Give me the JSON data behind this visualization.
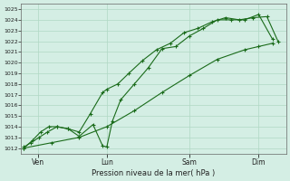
{
  "xlabel": "Pression niveau de la mer( hPa )",
  "ylim": [
    1011.5,
    1025.5
  ],
  "yticks": [
    1012,
    1013,
    1014,
    1015,
    1016,
    1017,
    1018,
    1019,
    1020,
    1021,
    1022,
    1023,
    1024,
    1025
  ],
  "bg_color": "#d4eee4",
  "grid_color": "#b0d8c4",
  "line_color": "#1a6b1a",
  "xtick_labels": [
    "Ven",
    "Lun",
    "Sam",
    "Dim"
  ],
  "xtick_positions": [
    0.5,
    3.0,
    6.0,
    8.5
  ],
  "xlim": [
    -0.1,
    9.5
  ],
  "line1_x": [
    0.0,
    0.25,
    0.55,
    0.85,
    1.2,
    1.6,
    2.0,
    2.5,
    2.85,
    3.0,
    3.2,
    3.5,
    4.0,
    4.5,
    5.0,
    5.5,
    6.0,
    6.5,
    7.0,
    7.5,
    8.0,
    8.5,
    9.0
  ],
  "line1_y": [
    1012.1,
    1012.5,
    1013.0,
    1013.5,
    1014.0,
    1013.8,
    1013.1,
    1014.2,
    1012.2,
    1012.1,
    1014.5,
    1016.5,
    1018.0,
    1019.5,
    1021.3,
    1021.5,
    1022.5,
    1023.2,
    1024.0,
    1024.0,
    1024.0,
    1024.5,
    1022.2
  ],
  "line2_x": [
    0.0,
    0.3,
    0.6,
    0.9,
    1.2,
    1.6,
    2.0,
    2.4,
    2.85,
    3.0,
    3.4,
    3.8,
    4.3,
    4.8,
    5.3,
    5.8,
    6.3,
    6.8,
    7.3,
    7.8,
    8.3,
    8.8,
    9.2
  ],
  "line2_y": [
    1012.0,
    1012.7,
    1013.5,
    1014.0,
    1014.0,
    1013.8,
    1013.5,
    1015.2,
    1017.2,
    1017.5,
    1018.0,
    1019.0,
    1020.2,
    1021.2,
    1021.8,
    1022.8,
    1023.2,
    1023.8,
    1024.2,
    1024.0,
    1024.2,
    1024.3,
    1022.0
  ],
  "line3_x": [
    0.0,
    1.0,
    2.0,
    3.0,
    4.0,
    5.0,
    6.0,
    7.0,
    8.0,
    8.5,
    9.0
  ],
  "line3_y": [
    1012.0,
    1012.5,
    1013.0,
    1014.0,
    1015.5,
    1017.2,
    1018.8,
    1020.3,
    1021.2,
    1021.5,
    1021.8
  ]
}
